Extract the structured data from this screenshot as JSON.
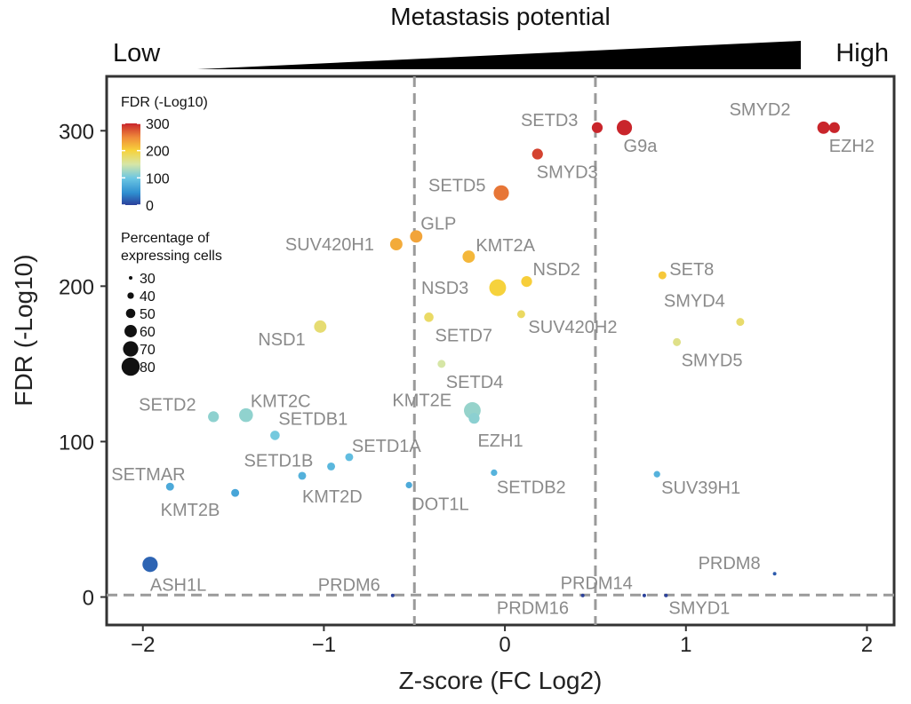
{
  "chart_data": {
    "type": "scatter",
    "header": {
      "title": "Metastasis potential",
      "low": "Low",
      "high": "High"
    },
    "xlabel": "Z-score (FC Log2)",
    "ylabel": "FDR (-Log10)",
    "xlim": [
      -2.2,
      2.15
    ],
    "ylim": [
      -18,
      335
    ],
    "xticks": [
      -2,
      -1,
      0,
      1,
      2
    ],
    "yticks": [
      0,
      100,
      200,
      300
    ],
    "xtick_labels": [
      "−2",
      "−1",
      "0",
      "1",
      "2"
    ],
    "ytick_labels": [
      "0",
      "100",
      "200",
      "300"
    ],
    "reference_lines": {
      "vertical": [
        -0.5,
        0.5
      ],
      "horizontal": [
        1.3
      ]
    },
    "legend_color": {
      "title": "FDR (-Log10)",
      "range": [
        0,
        300
      ],
      "ticks": [
        0,
        100,
        200,
        300
      ]
    },
    "legend_size": {
      "title": "Percentage of expressing cells",
      "title_lines": [
        "Percentage of",
        "expressing cells"
      ],
      "values": [
        30,
        40,
        50,
        60,
        70,
        80
      ]
    },
    "points": [
      {
        "name": "SMYD2",
        "x": 1.76,
        "y": 302,
        "pct": 60
      },
      {
        "name": "EZH2",
        "x": 1.82,
        "y": 302,
        "pct": 55
      },
      {
        "name": "SETD3",
        "x": 0.51,
        "y": 302,
        "pct": 55
      },
      {
        "name": "G9a",
        "x": 0.66,
        "y": 302,
        "pct": 70
      },
      {
        "name": "SMYD3",
        "x": 0.18,
        "y": 285,
        "pct": 55
      },
      {
        "name": "SETD5",
        "x": -0.02,
        "y": 260,
        "pct": 70
      },
      {
        "name": "GLP",
        "x": -0.49,
        "y": 232,
        "pct": 60
      },
      {
        "name": "SUV420H1",
        "x": -0.6,
        "y": 227,
        "pct": 60
      },
      {
        "name": "KMT2A",
        "x": -0.2,
        "y": 219,
        "pct": 60
      },
      {
        "name": "NSD2",
        "x": 0.12,
        "y": 203,
        "pct": 55
      },
      {
        "name": "NSD3",
        "x": -0.04,
        "y": 199,
        "pct": 75
      },
      {
        "name": "SET8",
        "x": 0.87,
        "y": 207,
        "pct": 45
      },
      {
        "name": "SMYD4",
        "x": 1.3,
        "y": 177,
        "pct": 45
      },
      {
        "name": "SUV420H2",
        "x": 0.09,
        "y": 182,
        "pct": 45
      },
      {
        "name": "SETD7",
        "x": -0.42,
        "y": 180,
        "pct": 50
      },
      {
        "name": "NSD1",
        "x": -1.02,
        "y": 174,
        "pct": 60
      },
      {
        "name": "SMYD5",
        "x": 0.95,
        "y": 164,
        "pct": 45
      },
      {
        "name": "SETD4",
        "x": -0.35,
        "y": 150,
        "pct": 45
      },
      {
        "name": "KMT2E",
        "x": -0.18,
        "y": 120,
        "pct": 75
      },
      {
        "name": "EZH1",
        "x": -0.17,
        "y": 115,
        "pct": 55
      },
      {
        "name": "SETD2",
        "x": -1.61,
        "y": 116,
        "pct": 55
      },
      {
        "name": "KMT2C",
        "x": -1.43,
        "y": 117,
        "pct": 65
      },
      {
        "name": "SETDB1",
        "x": -1.27,
        "y": 104,
        "pct": 50
      },
      {
        "name": "SETD1A",
        "x": -0.86,
        "y": 90,
        "pct": 45
      },
      {
        "name": "SETD1B",
        "x": -0.96,
        "y": 84,
        "pct": 45
      },
      {
        "name": "KMT2D",
        "x": -1.12,
        "y": 78,
        "pct": 45
      },
      {
        "name": "SETDB2",
        "x": -0.06,
        "y": 80,
        "pct": 40
      },
      {
        "name": "SUV39H1",
        "x": 0.84,
        "y": 79,
        "pct": 40
      },
      {
        "name": "DOT1L",
        "x": -0.53,
        "y": 72,
        "pct": 40
      },
      {
        "name": "SETMAR",
        "x": -1.85,
        "y": 71,
        "pct": 45
      },
      {
        "name": "KMT2B",
        "x": -1.49,
        "y": 67,
        "pct": 45
      },
      {
        "name": "ASH1L",
        "x": -1.96,
        "y": 21,
        "pct": 70
      },
      {
        "name": "PRDM8",
        "x": 1.49,
        "y": 15,
        "pct": 30
      },
      {
        "name": "PRDM6",
        "x": -0.62,
        "y": 1,
        "pct": 30
      },
      {
        "name": "PRDM14",
        "x": 0.43,
        "y": 1,
        "pct": 30
      },
      {
        "name": "PRDM16",
        "x": 0.77,
        "y": 1,
        "pct": 30
      },
      {
        "name": "SMYD1",
        "x": 0.89,
        "y": 1,
        "pct": 30
      }
    ],
    "highlight": {
      "name": "SMYD2",
      "color": "#1f5f86"
    }
  }
}
